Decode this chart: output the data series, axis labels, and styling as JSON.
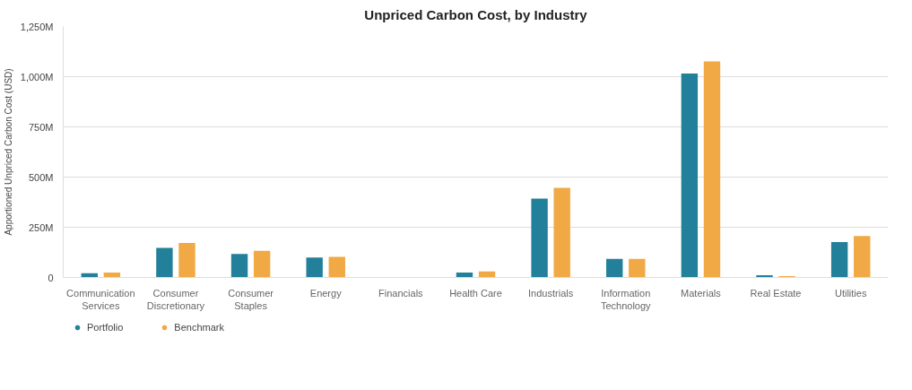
{
  "chart_data": {
    "type": "bar",
    "title": "Unpriced Carbon Cost, by Industry",
    "ylabel": "Apportioned Unpriced Carbon Cost (USD)",
    "categories": [
      "Communication Services",
      "Consumer Discretionary",
      "Consumer Staples",
      "Energy",
      "Financials",
      "Health Care",
      "Industrials",
      "Information Technology",
      "Materials",
      "Real Estate",
      "Utilities"
    ],
    "series": [
      {
        "name": "Portfolio",
        "color": "#23809a",
        "values": [
          21,
          147,
          117,
          99,
          0,
          25,
          393,
          93,
          1016,
          11,
          176
        ]
      },
      {
        "name": "Benchmark",
        "color": "#f0a945",
        "values": [
          25,
          172,
          133,
          103,
          0,
          30,
          446,
          93,
          1076,
          7,
          206
        ]
      }
    ],
    "ylim": [
      0,
      1250
    ],
    "yticks": [
      {
        "value": 0,
        "label": "0"
      },
      {
        "value": 250,
        "label": "250M"
      },
      {
        "value": 500,
        "label": "500M"
      },
      {
        "value": 750,
        "label": "750M"
      },
      {
        "value": 1000,
        "label": "1,000M"
      },
      {
        "value": 1250,
        "label": "1,250M"
      }
    ],
    "grid": "y",
    "legend": "bottom left"
  }
}
